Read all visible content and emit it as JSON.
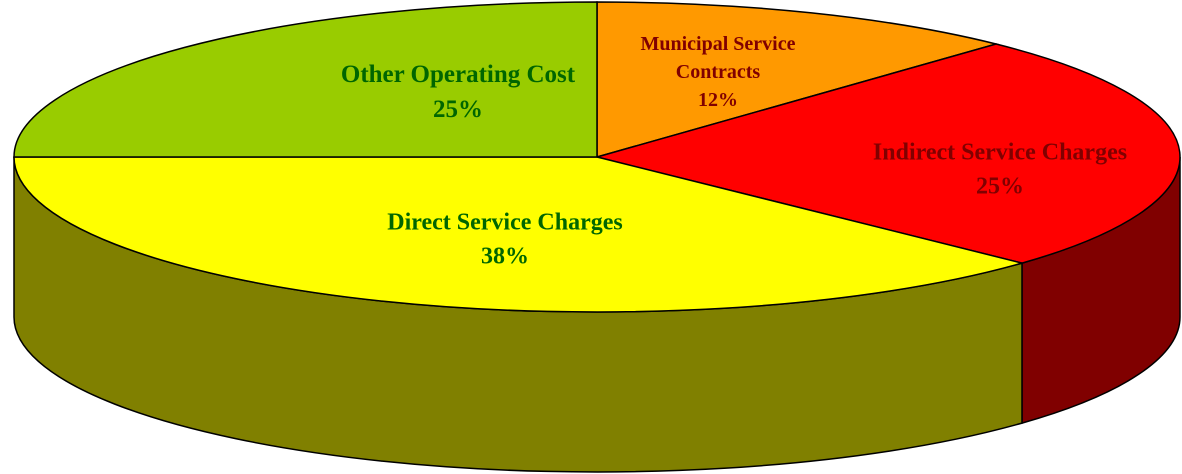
{
  "chart_data": {
    "type": "pie3d",
    "categories": [
      "Municipal Service Contracts",
      "Indirect Service Charges",
      "Direct Service Charges",
      "Other Operating Cost"
    ],
    "values": [
      12,
      25,
      38,
      25
    ],
    "value_labels": [
      "12%",
      "25%",
      "38%",
      "25%"
    ],
    "colors": [
      "#ff9900",
      "#ff0000",
      "#ffff00",
      "#99cc00"
    ],
    "side_colors": [
      "#804c00",
      "#800000",
      "#808000",
      "#4c6600"
    ],
    "label_colors": [
      "#800000",
      "#800000",
      "#006600",
      "#006600"
    ]
  }
}
